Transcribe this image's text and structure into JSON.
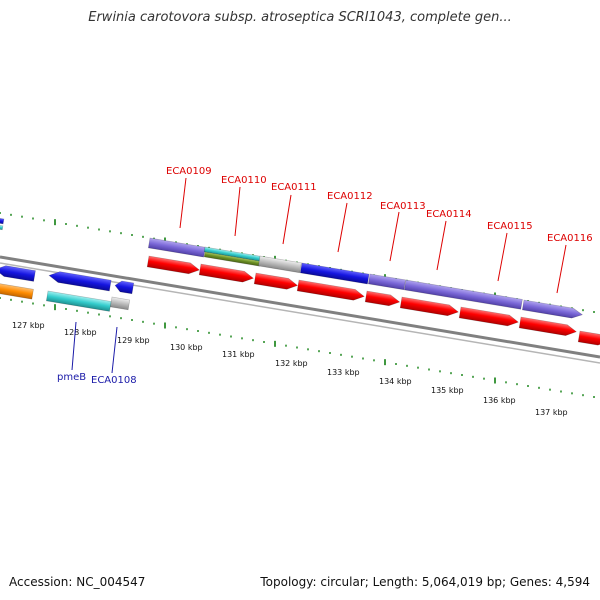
{
  "title": "Erwinia carotovora subsp. atroseptica SCRI1043, complete gen...",
  "ticks": [
    "127 kbp",
    "128 kbp",
    "129 kbp",
    "130 kbp",
    "131 kbp",
    "132 kbp",
    "133 kbp",
    "134 kbp",
    "135 kbp",
    "136 kbp",
    "137 kbp"
  ],
  "gene_labels_red": [
    "ECA0109",
    "ECA0110",
    "ECA0111",
    "ECA0112",
    "ECA0113",
    "ECA0114",
    "ECA0115",
    "ECA0116"
  ],
  "gene_labels_blue": [
    "pmeB",
    "ECA0108"
  ],
  "footer": {
    "accession": "Accession: NC_004547",
    "summary": "Topology: circular; Length: 5,064,019 bp; Genes: 4,594"
  },
  "colors": {
    "cds": "#ff0000",
    "cog_purple": "#7b68d8",
    "cog_blue": "#1515e0",
    "cog_cyan": "#33cccc",
    "cog_gray": "#bbbbbb",
    "cog_orange": "#ff8c00",
    "cog_olive": "#6b8e23",
    "backbone": "#808080",
    "ticks": "#0f7f0f",
    "label_red": "#dd0000",
    "label_blue": "#1a1aa8"
  }
}
